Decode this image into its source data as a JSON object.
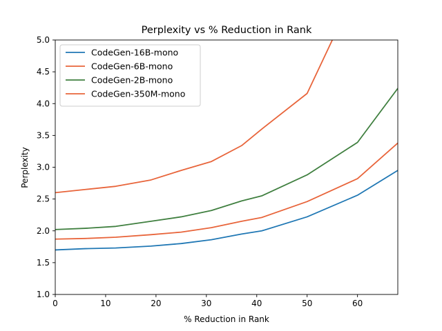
{
  "chart_data": {
    "type": "line",
    "title": "Perplexity vs % Reduction in Rank",
    "xlabel": "% Reduction in Rank",
    "ylabel": "Perplexity",
    "xlim": [
      0,
      68
    ],
    "ylim": [
      1.0,
      5.0
    ],
    "xticks": [
      0,
      10,
      20,
      30,
      40,
      50,
      60
    ],
    "yticks": [
      1.0,
      1.5,
      2.0,
      2.5,
      3.0,
      3.5,
      4.0,
      4.5,
      5.0
    ],
    "grid": false,
    "legend_position": "top-left",
    "series": [
      {
        "name": "CodeGen-16B-mono",
        "color": "#1f77b4",
        "x": [
          0,
          6,
          12,
          19,
          25,
          31,
          37,
          41,
          50,
          60,
          68
        ],
        "y": [
          1.7,
          1.72,
          1.73,
          1.76,
          1.8,
          1.86,
          1.95,
          2.0,
          2.22,
          2.56,
          2.95
        ]
      },
      {
        "name": "CodeGen-6B-mono",
        "color": "#e8643a",
        "x": [
          0,
          6,
          12,
          19,
          25,
          31,
          37,
          41,
          50,
          60,
          68
        ],
        "y": [
          1.87,
          1.88,
          1.9,
          1.94,
          1.98,
          2.05,
          2.15,
          2.21,
          2.46,
          2.82,
          3.38
        ]
      },
      {
        "name": "CodeGen-2B-mono",
        "color": "#3f7f3f",
        "x": [
          0,
          6,
          12,
          19,
          25,
          31,
          37,
          41,
          50,
          60,
          68
        ],
        "y": [
          2.02,
          2.04,
          2.07,
          2.15,
          2.22,
          2.32,
          2.47,
          2.55,
          2.88,
          3.39,
          4.24
        ]
      },
      {
        "name": "CodeGen-350M-mono",
        "color": "#e8643a",
        "x": [
          0,
          6,
          12,
          19,
          25,
          31,
          37,
          41,
          50,
          55
        ],
        "y": [
          2.6,
          2.65,
          2.7,
          2.8,
          2.95,
          3.09,
          3.34,
          3.6,
          4.16,
          5.0
        ]
      }
    ]
  }
}
